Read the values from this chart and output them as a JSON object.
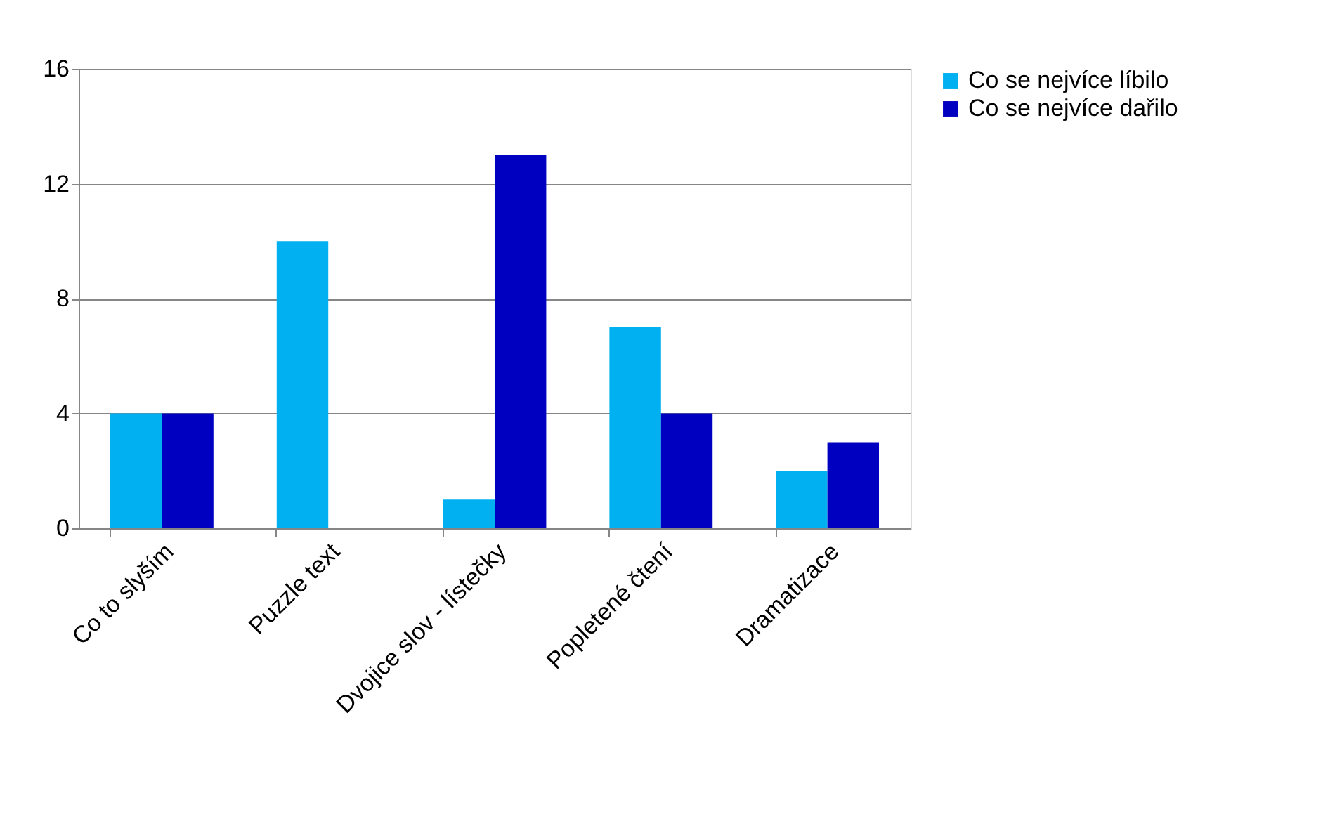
{
  "chart_data": {
    "type": "bar",
    "categories": [
      "Co to slyším",
      "Puzzle text",
      "Dvojice slov - lístečky",
      "Popletené čtení",
      "Dramatizace"
    ],
    "series": [
      {
        "name": "Co se nejvíce líbilo",
        "color": "#00b0f0",
        "values": [
          4,
          10,
          1,
          7,
          2
        ]
      },
      {
        "name": "Co se nejvíce dařilo",
        "color": "#0000c0",
        "values": [
          4,
          0,
          13,
          4,
          3
        ]
      }
    ],
    "ylim": [
      0,
      16
    ],
    "yticks": [
      0,
      4,
      8,
      12,
      16
    ],
    "grid": "y",
    "legend": "right"
  }
}
